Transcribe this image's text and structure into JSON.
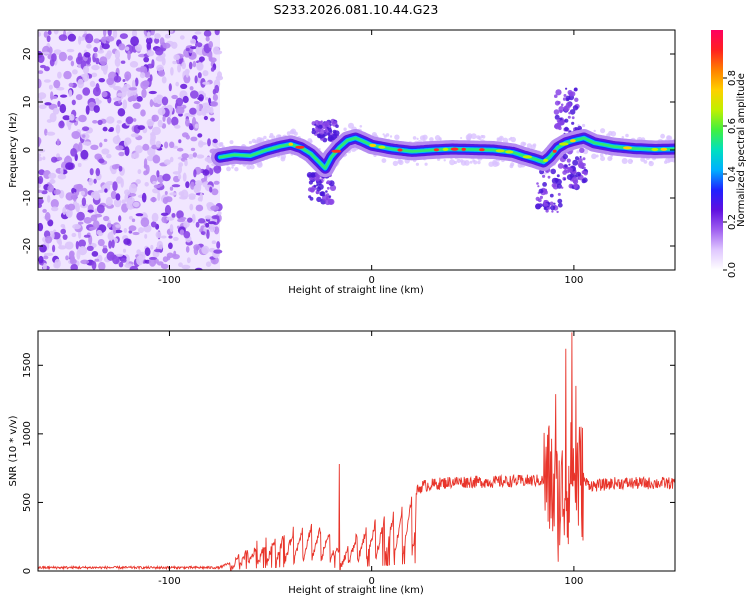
{
  "title": "S233.2026.081.10.44.G23",
  "chart_data": [
    {
      "type": "heatmap",
      "name": "spectrogram",
      "xlabel": "Height of straight line (km)",
      "ylabel": "Frequency (Hz)",
      "xlim": [
        -165,
        150
      ],
      "ylim": [
        -25,
        25
      ],
      "xticks": [
        -100,
        0,
        100
      ],
      "yticks": [
        -20,
        -10,
        0,
        10,
        20
      ],
      "noise_region_x": [
        -165,
        -75
      ],
      "ridge": {
        "x": [
          -75,
          -68,
          -60,
          -52,
          -45,
          -40,
          -35,
          -30,
          -26,
          -23,
          -20,
          -16,
          -12,
          -8,
          -4,
          0,
          10,
          20,
          30,
          40,
          50,
          60,
          70,
          75,
          80,
          85,
          88,
          92,
          96,
          100,
          105,
          110,
          120,
          130,
          140,
          150
        ],
        "freq": [
          -1.5,
          -1.0,
          -1.2,
          0,
          0.8,
          1.2,
          0.5,
          -0.8,
          -2.5,
          -3.8,
          -1.5,
          0.5,
          2.0,
          2.5,
          1.8,
          1.0,
          0.2,
          -0.3,
          0,
          0.2,
          0.1,
          0,
          -0.5,
          -1.2,
          -1.8,
          -2.5,
          -1.5,
          0.5,
          1.5,
          2.0,
          2.5,
          1.5,
          0.7,
          0.3,
          0.1,
          0.2
        ]
      },
      "colorbar": {
        "label": "Normalized spectral amplitude",
        "range": [
          0,
          1
        ],
        "ticks": [
          "0.0",
          "0.2",
          "0.4",
          "0.6",
          "0.8"
        ],
        "tick_values": [
          0.0,
          0.2,
          0.4,
          0.6,
          0.8
        ],
        "colors": [
          "#ffffff",
          "#e0c8ff",
          "#a060f0",
          "#6010e0",
          "#2020ff",
          "#00b0ff",
          "#00e0c0",
          "#40f040",
          "#c0f000",
          "#ffd000",
          "#ff8000",
          "#ff2020",
          "#ff0060"
        ]
      }
    },
    {
      "type": "line",
      "name": "snr",
      "color": "#e8342a",
      "xlabel": "Height of straight line (km)",
      "ylabel": "SNR (10 * v/v)",
      "xlim": [
        -165,
        150
      ],
      "ylim": [
        0,
        1750
      ],
      "xticks": [
        -100,
        0,
        100
      ],
      "yticks": [
        0,
        500,
        1000,
        1500
      ],
      "envelope": {
        "x": [
          -165,
          -75,
          -70,
          -60,
          -50,
          -40,
          -30,
          -20,
          -15,
          -10,
          0,
          10,
          20,
          25,
          40,
          60,
          80,
          88,
          92,
          96,
          100,
          105,
          110,
          120,
          130,
          140,
          150
        ],
        "y": [
          25,
          25,
          60,
          180,
          240,
          300,
          350,
          300,
          80,
          250,
          350,
          420,
          550,
          620,
          650,
          650,
          660,
          660,
          500,
          600,
          700,
          650,
          620,
          640,
          640,
          640,
          640
        ]
      },
      "peaks": [
        {
          "x": -16,
          "y": 780
        },
        {
          "x": 91,
          "y": 1290
        },
        {
          "x": 96,
          "y": 1620
        },
        {
          "x": 99,
          "y": 1740
        },
        {
          "x": 101,
          "y": 1350
        }
      ]
    }
  ]
}
